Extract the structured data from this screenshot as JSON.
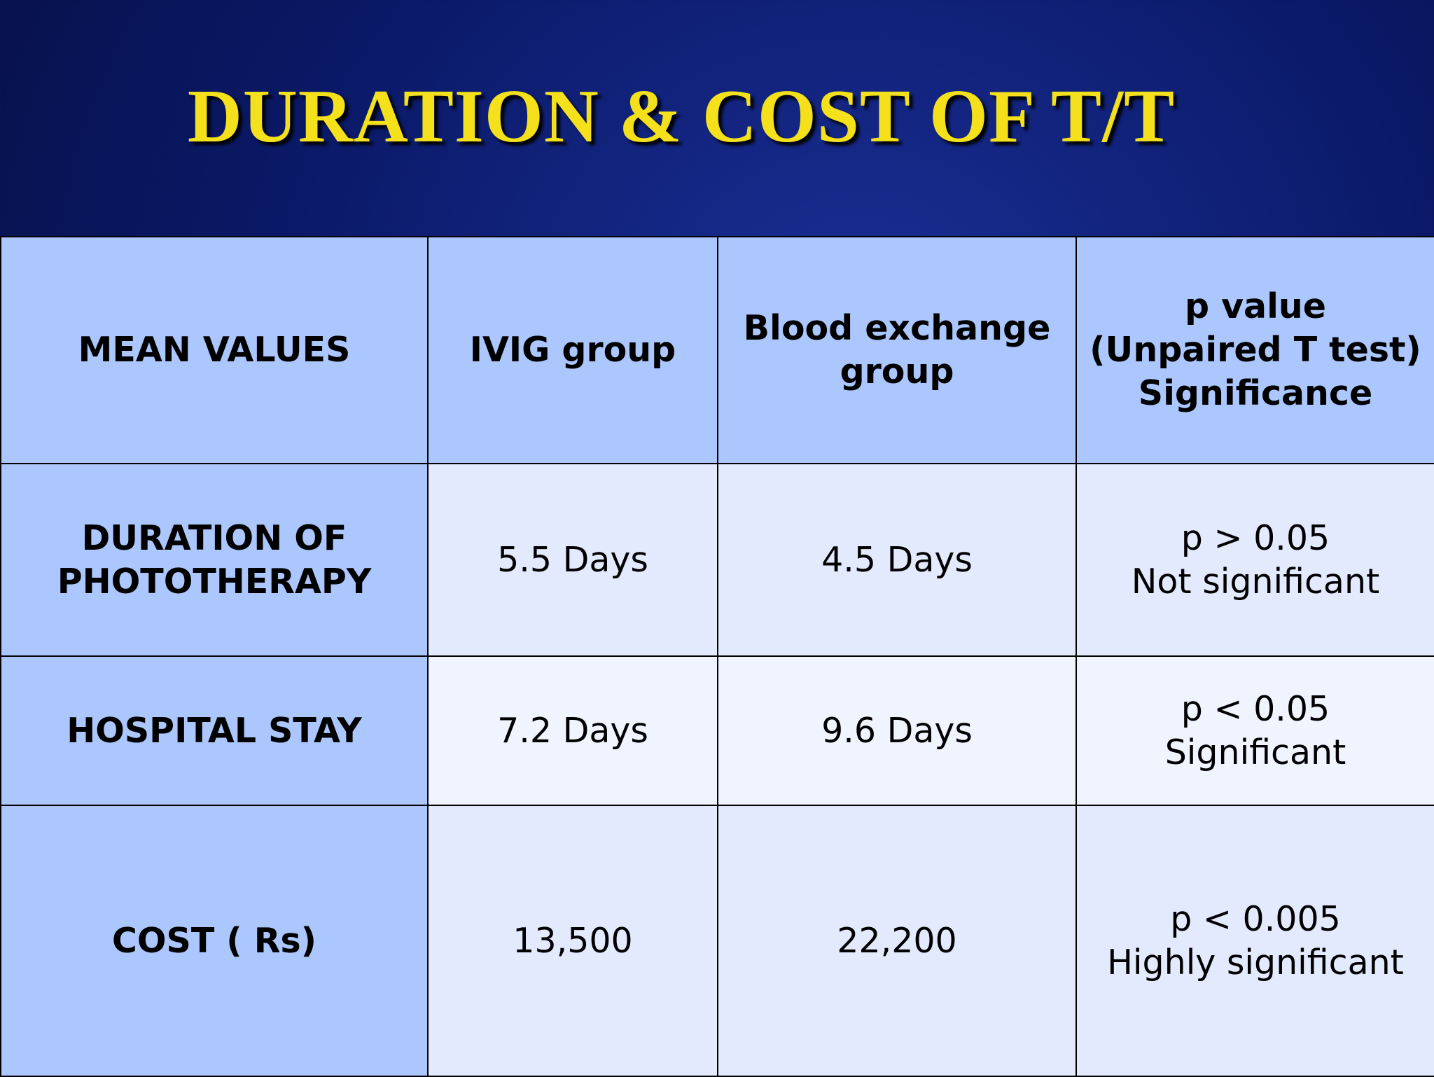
{
  "title": "DURATION & COST OF T/T",
  "table": {
    "header": [
      [
        "MEAN VALUES"
      ],
      [
        "IVIG  group"
      ],
      [
        "Blood exchange",
        "group"
      ],
      [
        "p value",
        "(Unpaired T test)",
        "Significance"
      ]
    ],
    "rows": [
      [
        [
          "DURATION OF",
          "PHOTOTHERAPY"
        ],
        [
          "5.5 Days"
        ],
        [
          "4.5 Days"
        ],
        [
          "p > 0.05",
          "Not significant"
        ]
      ],
      [
        [
          "HOSPITAL STAY"
        ],
        [
          "7.2 Days"
        ],
        [
          "9.6 Days"
        ],
        [
          "p < 0.05",
          "Significant"
        ]
      ],
      [
        [
          "COST ( Rs)"
        ],
        [
          "13,500"
        ],
        [
          "22,200"
        ],
        [
          "p < 0.005",
          "Highly significant"
        ]
      ]
    ]
  }
}
